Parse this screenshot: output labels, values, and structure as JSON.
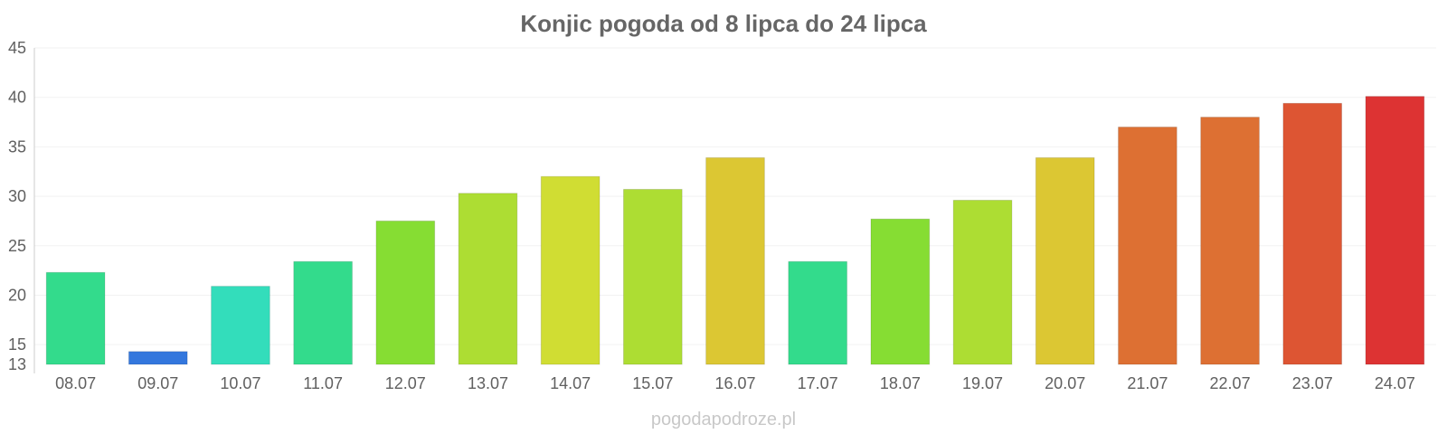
{
  "chart_data": {
    "type": "bar",
    "title": "Konjic pogoda od 8 lipca do 24 lipca",
    "xlabel": "",
    "ylabel": "",
    "categories": [
      "08.07",
      "09.07",
      "10.07",
      "11.07",
      "12.07",
      "13.07",
      "14.07",
      "15.07",
      "16.07",
      "17.07",
      "18.07",
      "19.07",
      "20.07",
      "21.07",
      "22.07",
      "23.07",
      "24.07"
    ],
    "values": [
      22.3,
      14.3,
      20.9,
      23.4,
      27.5,
      30.3,
      32.0,
      30.7,
      33.9,
      23.4,
      27.7,
      29.6,
      33.9,
      37.0,
      38.0,
      39.4,
      40.1
    ],
    "colors": [
      "#33db8c",
      "#3377dd",
      "#33ddbb",
      "#33db8c",
      "#86dd33",
      "#addd33",
      "#d0dd33",
      "#addd33",
      "#dcc733",
      "#33db8c",
      "#86dd33",
      "#addd33",
      "#dcc733",
      "#dd7033",
      "#dd7033",
      "#dd5533",
      "#dd3333"
    ],
    "ylim": [
      13,
      45
    ],
    "yticks": [
      13,
      15,
      20,
      25,
      30,
      35,
      40,
      45
    ],
    "grid": true,
    "legend": "none",
    "watermark": "pogodapodroze.pl"
  }
}
